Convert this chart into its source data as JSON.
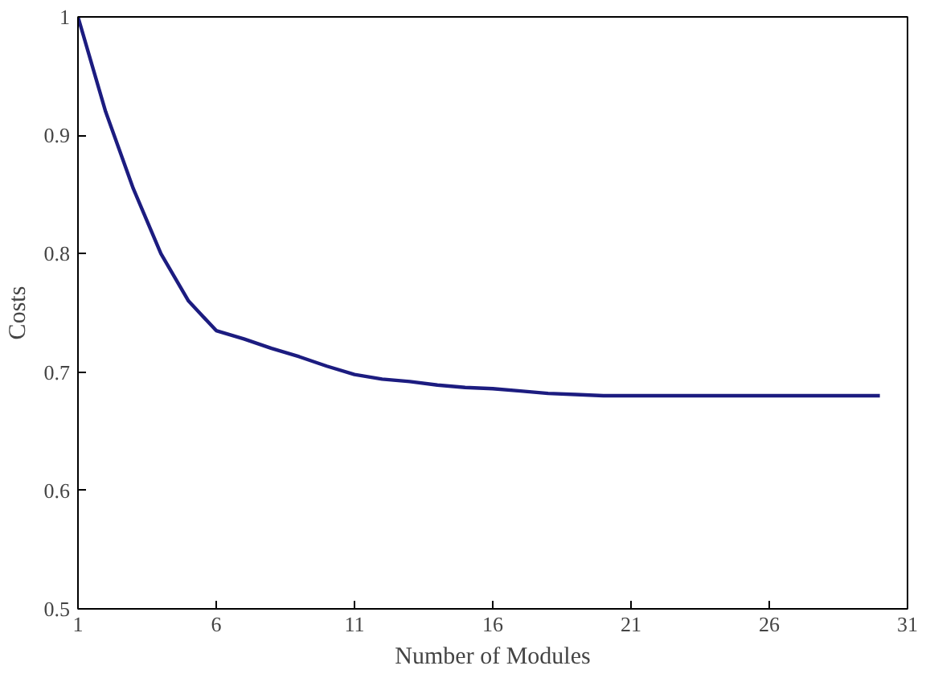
{
  "chart_data": {
    "type": "line",
    "xlabel": "Number of Modules",
    "ylabel": "Costs",
    "x": [
      1,
      2,
      3,
      4,
      5,
      6,
      7,
      8,
      9,
      10,
      11,
      12,
      13,
      14,
      15,
      16,
      17,
      18,
      19,
      20,
      21,
      22,
      23,
      24,
      25,
      26,
      27,
      28,
      29,
      30
    ],
    "series": [
      {
        "color": "#1c1c80",
        "values": [
          1.0,
          0.92,
          0.855,
          0.8,
          0.76,
          0.735,
          0.728,
          0.72,
          0.713,
          0.705,
          0.698,
          0.694,
          0.692,
          0.689,
          0.687,
          0.686,
          0.684,
          0.682,
          0.681,
          0.68,
          0.68,
          0.68,
          0.68,
          0.68,
          0.68,
          0.68,
          0.68,
          0.68,
          0.68,
          0.68
        ]
      }
    ],
    "xlim": [
      1,
      31
    ],
    "ylim": [
      0.5,
      1
    ],
    "xticks": [
      1,
      6,
      11,
      16,
      21,
      26,
      31
    ],
    "yticks": [
      0.5,
      0.6,
      0.7,
      0.8,
      0.9,
      1
    ],
    "grid": false,
    "marker": "none",
    "line_style": "solid"
  }
}
